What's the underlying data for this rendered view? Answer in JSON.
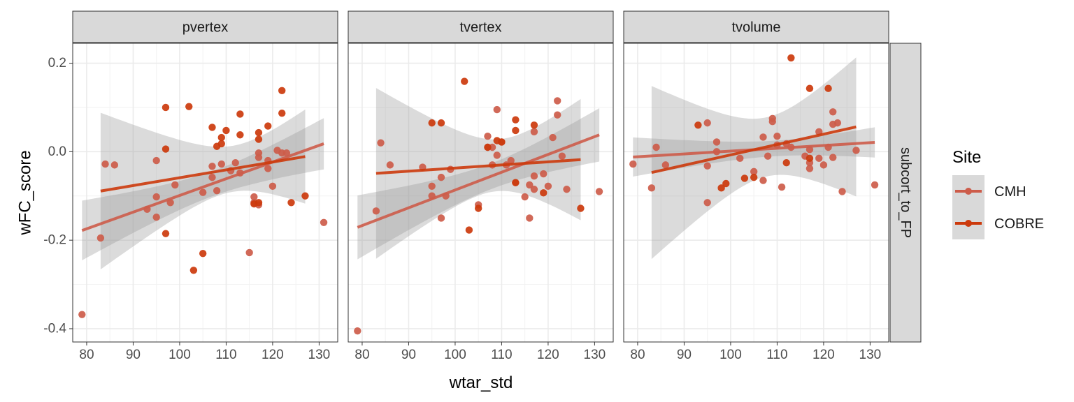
{
  "chart_data": {
    "type": "scatter",
    "facet_row_label": "subcort_to_FP",
    "xlabel": "wtar_std",
    "ylabel": "wFC_score",
    "xlim": [
      77,
      134
    ],
    "ylim": [
      -0.43,
      0.245
    ],
    "x_ticks": [
      80,
      90,
      100,
      110,
      120,
      130
    ],
    "y_ticks": [
      -0.4,
      -0.2,
      0.0,
      0.2
    ],
    "y_tick_labels": [
      "-0.4",
      "-0.2",
      "0.0",
      "0.2"
    ],
    "grid": true,
    "legend": {
      "title": "Site",
      "position": "right"
    },
    "series": [
      {
        "name": "CMH",
        "color": "#cd5c4a"
      },
      {
        "name": "COBRE",
        "color": "#cc3a0c"
      }
    ],
    "panels": [
      {
        "title": "pvertex",
        "points": {
          "CMH": [
            [
              79,
              -0.368
            ],
            [
              83,
              -0.195
            ],
            [
              84,
              -0.028
            ],
            [
              86,
              -0.03
            ],
            [
              93,
              -0.13
            ],
            [
              95,
              -0.02
            ],
            [
              95,
              -0.102
            ],
            [
              95,
              -0.148
            ],
            [
              98,
              -0.115
            ],
            [
              99,
              -0.075
            ],
            [
              105,
              -0.092
            ],
            [
              107,
              -0.058
            ],
            [
              107,
              -0.033
            ],
            [
              108,
              -0.088
            ],
            [
              109,
              -0.028
            ],
            [
              111,
              -0.043
            ],
            [
              112,
              -0.025
            ],
            [
              113,
              -0.048
            ],
            [
              115,
              -0.228
            ],
            [
              116,
              -0.102
            ],
            [
              116,
              -0.115
            ],
            [
              117,
              -0.12
            ],
            [
              117,
              -0.003
            ],
            [
              117,
              -0.013
            ],
            [
              119,
              -0.02
            ],
            [
              119,
              -0.038
            ],
            [
              120,
              -0.078
            ],
            [
              121,
              0.003
            ],
            [
              122,
              -0.003
            ],
            [
              123,
              -0.003
            ],
            [
              131,
              -0.16
            ]
          ],
          "COBRE": [
            [
              97,
              0.1
            ],
            [
              97,
              0.006
            ],
            [
              97,
              -0.185
            ],
            [
              102,
              0.102
            ],
            [
              103,
              -0.268
            ],
            [
              105,
              -0.23
            ],
            [
              107,
              0.055
            ],
            [
              108,
              0.012
            ],
            [
              109,
              0.032
            ],
            [
              109,
              0.018
            ],
            [
              110,
              0.048
            ],
            [
              113,
              0.085
            ],
            [
              113,
              0.038
            ],
            [
              116,
              -0.118
            ],
            [
              117,
              -0.115
            ],
            [
              117,
              0.043
            ],
            [
              117,
              0.028
            ],
            [
              119,
              0.058
            ],
            [
              122,
              0.138
            ],
            [
              122,
              0.087
            ],
            [
              124,
              -0.115
            ],
            [
              127,
              -0.1
            ]
          ]
        },
        "fits": {
          "CMH": {
            "x": [
              79,
              131
            ],
            "y": [
              -0.178,
              0.018
            ]
          },
          "COBRE": {
            "x": [
              83,
              127
            ],
            "y": [
              -0.089,
              -0.011
            ]
          }
        }
      },
      {
        "title": "tvertex",
        "points": {
          "CMH": [
            [
              79,
              -0.405
            ],
            [
              83,
              -0.134
            ],
            [
              84,
              0.02
            ],
            [
              86,
              -0.03
            ],
            [
              93,
              -0.035
            ],
            [
              95,
              -0.078
            ],
            [
              95,
              -0.1
            ],
            [
              97,
              -0.15
            ],
            [
              97,
              -0.058
            ],
            [
              98,
              -0.1
            ],
            [
              99,
              -0.04
            ],
            [
              105,
              -0.12
            ],
            [
              107,
              0.035
            ],
            [
              107,
              0.01
            ],
            [
              108,
              0.01
            ],
            [
              108,
              -0.03
            ],
            [
              109,
              0.095
            ],
            [
              109,
              -0.008
            ],
            [
              110,
              0.022
            ],
            [
              111,
              -0.03
            ],
            [
              112,
              -0.02
            ],
            [
              113,
              -0.07
            ],
            [
              115,
              -0.102
            ],
            [
              116,
              -0.15
            ],
            [
              116,
              -0.075
            ],
            [
              117,
              -0.055
            ],
            [
              117,
              0.045
            ],
            [
              117,
              -0.085
            ],
            [
              119,
              -0.05
            ],
            [
              120,
              -0.078
            ],
            [
              121,
              0.032
            ],
            [
              122,
              0.115
            ],
            [
              122,
              0.083
            ],
            [
              123,
              -0.01
            ],
            [
              124,
              -0.085
            ],
            [
              131,
              -0.09
            ]
          ],
          "COBRE": [
            [
              95,
              0.065
            ],
            [
              97,
              0.065
            ],
            [
              102,
              0.159
            ],
            [
              103,
              -0.177
            ],
            [
              105,
              -0.128
            ],
            [
              107,
              0.01
            ],
            [
              109,
              0.025
            ],
            [
              110,
              0.022
            ],
            [
              113,
              0.072
            ],
            [
              113,
              0.048
            ],
            [
              113,
              -0.07
            ],
            [
              117,
              0.06
            ],
            [
              119,
              -0.093
            ],
            [
              127,
              -0.128
            ]
          ]
        },
        "fits": {
          "CMH": {
            "x": [
              79,
              131
            ],
            "y": [
              -0.171,
              0.038
            ]
          },
          "COBRE": {
            "x": [
              83,
              127
            ],
            "y": [
              -0.049,
              -0.018
            ]
          }
        }
      },
      {
        "title": "tvolume",
        "points": {
          "CMH": [
            [
              79,
              -0.028
            ],
            [
              83,
              -0.082
            ],
            [
              84,
              0.01
            ],
            [
              86,
              -0.03
            ],
            [
              95,
              0.065
            ],
            [
              95,
              -0.032
            ],
            [
              95,
              -0.115
            ],
            [
              97,
              0.022
            ],
            [
              97,
              0.0
            ],
            [
              102,
              -0.015
            ],
            [
              105,
              -0.045
            ],
            [
              107,
              0.033
            ],
            [
              107,
              -0.065
            ],
            [
              108,
              -0.01
            ],
            [
              109,
              0.075
            ],
            [
              109,
              0.068
            ],
            [
              110,
              0.035
            ],
            [
              110,
              0.015
            ],
            [
              111,
              -0.08
            ],
            [
              112,
              0.018
            ],
            [
              113,
              0.01
            ],
            [
              116,
              -0.01
            ],
            [
              117,
              -0.025
            ],
            [
              117,
              -0.038
            ],
            [
              117,
              0.005
            ],
            [
              119,
              0.045
            ],
            [
              119,
              -0.015
            ],
            [
              120,
              -0.03
            ],
            [
              121,
              0.01
            ],
            [
              122,
              -0.013
            ],
            [
              122,
              0.09
            ],
            [
              122,
              0.062
            ],
            [
              123,
              0.065
            ],
            [
              124,
              -0.09
            ],
            [
              127,
              0.003
            ],
            [
              131,
              -0.075
            ]
          ],
          "COBRE": [
            [
              93,
              0.06
            ],
            [
              98,
              -0.082
            ],
            [
              99,
              -0.072
            ],
            [
              103,
              -0.06
            ],
            [
              105,
              -0.058
            ],
            [
              112,
              -0.025
            ],
            [
              113,
              0.212
            ],
            [
              117,
              0.143
            ],
            [
              117,
              -0.015
            ],
            [
              121,
              0.143
            ]
          ]
        },
        "fits": {
          "CMH": {
            "x": [
              79,
              131
            ],
            "y": [
              -0.012,
              0.021
            ]
          },
          "COBRE": {
            "x": [
              83,
              127
            ],
            "y": [
              -0.047,
              0.056
            ]
          }
        }
      }
    ]
  }
}
